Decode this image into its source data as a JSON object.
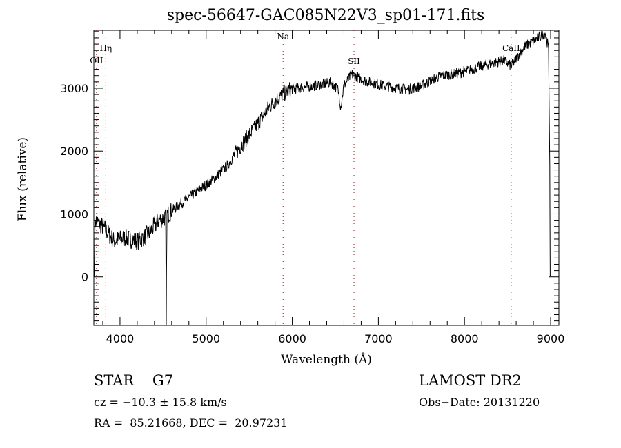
{
  "chart_data": {
    "type": "line",
    "title": "spec-56647-GAC085N22V3_sp01-171.fits",
    "xlabel": "Wavelength (Å)",
    "ylabel": "Flux (relative)",
    "xlim": [
      3696,
      9096
    ],
    "ylim": [
      -770,
      3920
    ],
    "xticks": [
      4000,
      5000,
      6000,
      7000,
      8000,
      9000
    ],
    "yticks": [
      0,
      1000,
      2000,
      3000
    ],
    "grid": false,
    "series": [
      {
        "name": "spectrum",
        "x": [
          3700,
          3712,
          3808,
          3928,
          4048,
          4208,
          4330,
          4449,
          4530,
          4537,
          4545,
          4609,
          4769,
          4929,
          5090,
          5250,
          5410,
          5570,
          5731,
          5811,
          5971,
          6212,
          6452,
          6532,
          6563,
          6600,
          6692,
          6852,
          7093,
          7333,
          7494,
          7640,
          7734,
          7974,
          8215,
          8455,
          8542,
          8695,
          8856,
          8936,
          8976,
          8990,
          8995,
          9000
        ],
        "y": [
          0,
          900,
          790,
          570,
          620,
          570,
          680,
          900,
          950,
          -770,
          980,
          1060,
          1230,
          1390,
          1555,
          1775,
          2100,
          2380,
          2700,
          2815,
          2980,
          3030,
          3090,
          2980,
          2700,
          3050,
          3220,
          3110,
          3030,
          2980,
          3030,
          3150,
          3200,
          3250,
          3360,
          3440,
          3350,
          3660,
          3800,
          3880,
          3640,
          1800,
          20,
          20
        ]
      }
    ],
    "lines": [
      {
        "label": "OII",
        "wavelength": 3727
      },
      {
        "label": "Hη",
        "wavelength": 3835
      },
      {
        "label": "Na",
        "wavelength": 5893
      },
      {
        "label": "SII",
        "wavelength": 6717
      },
      {
        "label": "CaII",
        "wavelength": 8542
      }
    ],
    "line_color": "#8b1a1a"
  },
  "info": {
    "object": "STAR    G7",
    "survey": "LAMOST DR2",
    "cz": "cz = −10.3 ± 15.8 km/s",
    "obs_date": "Obs−Date: 20131220",
    "coords": "RA =  85.21668, DEC =  20.97231"
  }
}
